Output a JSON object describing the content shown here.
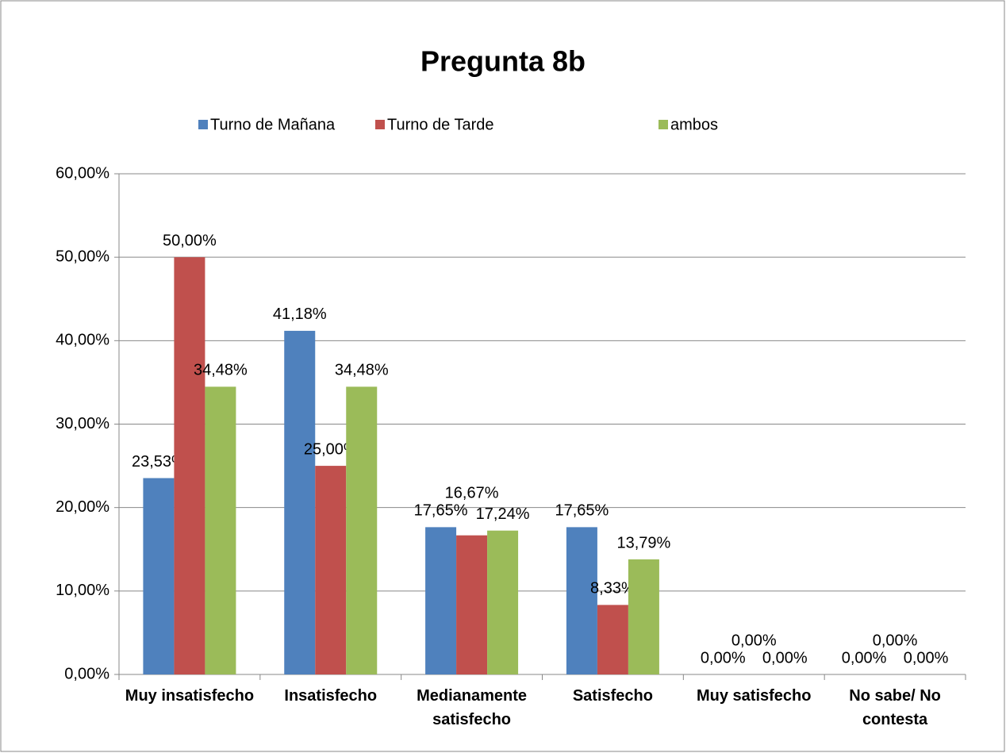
{
  "chart_data": {
    "type": "bar",
    "title": "Pregunta 8b",
    "categories": [
      "Muy insatisfecho",
      "Insatisfecho",
      "Medianamente satisfecho",
      "Satisfecho",
      "Muy satisfecho",
      "No sabe/ No contesta"
    ],
    "series": [
      {
        "name": "Turno de Mañana",
        "color": "#4f81bd",
        "values": [
          23.53,
          41.18,
          17.65,
          17.65,
          0,
          0
        ],
        "value_labels": [
          "23,53%",
          "41,18%",
          "17,65%",
          "17,65%",
          "0,00%",
          "0,00%"
        ]
      },
      {
        "name": "Turno de Tarde",
        "color": "#c0504d",
        "values": [
          50,
          25,
          16.67,
          8.33,
          0,
          0
        ],
        "value_labels": [
          "50,00%",
          "25,00%",
          "16,67%",
          "8,33%",
          "0,00%",
          "0,00%"
        ]
      },
      {
        "name": "ambos",
        "color": "#9bbb59",
        "values": [
          34.48,
          34.48,
          17.24,
          13.79,
          0,
          0
        ],
        "value_labels": [
          "34,48%",
          "34,48%",
          "17,24%",
          "13,79%",
          "0,00%",
          "0,00%"
        ]
      }
    ],
    "ylim": [
      0,
      60
    ],
    "yticks": [
      {
        "value": 0,
        "label": "0,00%"
      },
      {
        "value": 10,
        "label": "10,00%"
      },
      {
        "value": 20,
        "label": "20,00%"
      },
      {
        "value": 30,
        "label": "30,00%"
      },
      {
        "value": 40,
        "label": "40,00%"
      },
      {
        "value": 50,
        "label": "50,00%"
      },
      {
        "value": 60,
        "label": "60,00%"
      }
    ],
    "grid": true,
    "legend": "top"
  }
}
